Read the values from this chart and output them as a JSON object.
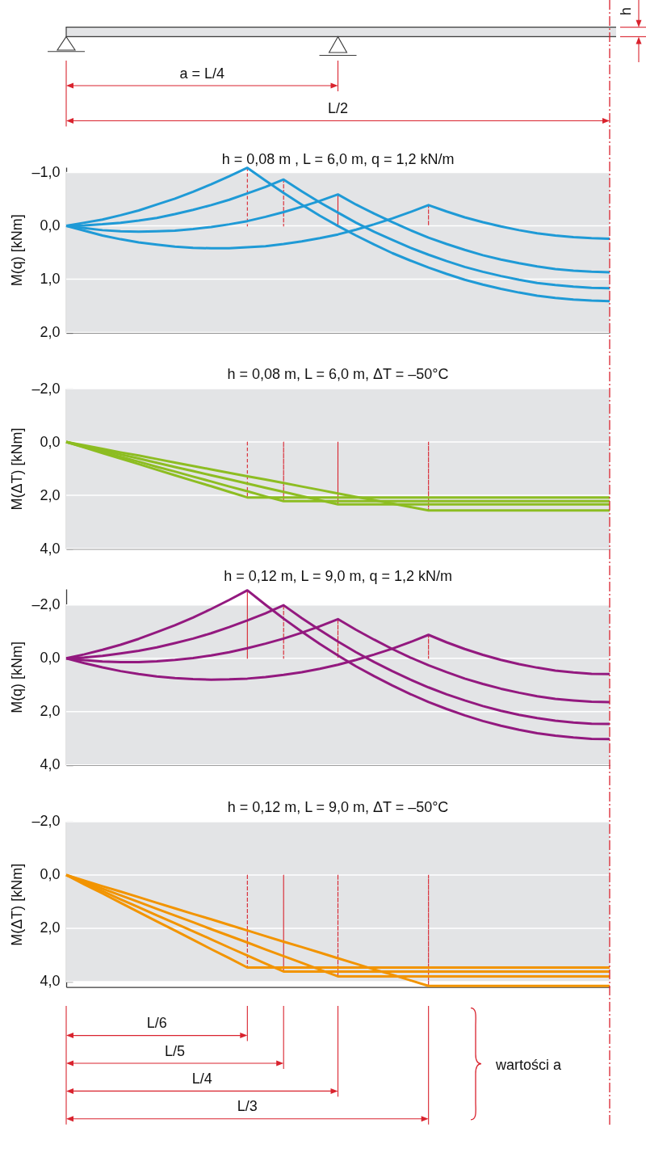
{
  "chart_data": [
    {
      "type": "line",
      "title": "h = 0,08 m , L = 6,0 m, q = 1,2 kN/m",
      "ylabel": "M(q) [kNm]",
      "categories": [
        null,
        null,
        null,
        null,
        null,
        null,
        null,
        null,
        null,
        null,
        null,
        null,
        null,
        null,
        null,
        null,
        null,
        null,
        null,
        null,
        null,
        null,
        null,
        null,
        null,
        null,
        null,
        null,
        null,
        null,
        null
      ],
      "ylim": [
        2,
        -1.1
      ],
      "yticks": [
        {
          "value": -1,
          "label": "–1,0"
        },
        {
          "value": 0,
          "label": "0,0"
        },
        {
          "value": 1,
          "label": "1,0"
        },
        {
          "value": 2,
          "label": "2,0"
        }
      ],
      "tick_labels": "y",
      "grid": "y",
      "bands": [
        {
          "axis": "y",
          "from": -1,
          "to": 2,
          "color": "#e3e4e6"
        }
      ],
      "annotations": [
        "a = L/4",
        "L/2",
        "h"
      ],
      "series": [
        {
          "type": "bar",
          "color": "#d9232e",
          "line_style": "dashed",
          "values": [
            null,
            null,
            null,
            null,
            null,
            null,
            null,
            null,
            null,
            null,
            -1.09,
            null,
            -0.87,
            null,
            null,
            -0.59,
            null,
            null,
            null,
            null,
            -0.39,
            null,
            null,
            null,
            null,
            null,
            null,
            null,
            null,
            null,
            null
          ]
        },
        {
          "color": "#1f9ad6",
          "values": [
            0,
            -0.06,
            -0.12,
            -0.2,
            -0.29,
            -0.4,
            -0.51,
            -0.64,
            -0.78,
            -0.93,
            -1.09,
            -0.85,
            -0.62,
            -0.4,
            -0.19,
            0,
            0.18,
            0.35,
            0.51,
            0.65,
            0.78,
            0.9,
            1.01,
            1.1,
            1.18,
            1.25,
            1.31,
            1.35,
            1.38,
            1.4,
            1.41
          ]
        },
        {
          "color": "#1f9ad6",
          "values": [
            0,
            -0.01,
            -0.03,
            -0.06,
            -0.1,
            -0.15,
            -0.22,
            -0.3,
            -0.39,
            -0.49,
            -0.61,
            -0.73,
            -0.87,
            -0.65,
            -0.44,
            -0.25,
            -0.06,
            0.11,
            0.26,
            0.41,
            0.54,
            0.66,
            0.77,
            0.86,
            0.94,
            1.01,
            1.07,
            1.11,
            1.14,
            1.16,
            1.17
          ]
        },
        {
          "color": "#1f9ad6",
          "values": [
            0,
            0.04,
            0.08,
            0.1,
            0.11,
            0.1,
            0.09,
            0.06,
            0.02,
            -0.03,
            -0.09,
            -0.17,
            -0.26,
            -0.36,
            -0.47,
            -0.59,
            -0.4,
            -0.23,
            -0.07,
            0.08,
            0.22,
            0.34,
            0.45,
            0.55,
            0.63,
            0.7,
            0.76,
            0.81,
            0.84,
            0.86,
            0.87
          ]
        },
        {
          "color": "#1f9ad6",
          "values": [
            0,
            0.09,
            0.18,
            0.25,
            0.31,
            0.35,
            0.39,
            0.41,
            0.42,
            0.42,
            0.4,
            0.38,
            0.34,
            0.29,
            0.23,
            0.16,
            0.07,
            -0.03,
            -0.14,
            -0.26,
            -0.39,
            -0.27,
            -0.16,
            -0.07,
            0.01,
            0.08,
            0.14,
            0.18,
            0.21,
            0.23,
            0.24
          ]
        }
      ]
    },
    {
      "type": "line",
      "title": "h = 0,08 m, L = 6,0 m, ΔT = –50°C",
      "ylabel": "M(ΔT) [kNm]",
      "categories": [
        null,
        null,
        null,
        null,
        null,
        null,
        null,
        null,
        null,
        null,
        null,
        null,
        null,
        null,
        null,
        null,
        null,
        null,
        null,
        null,
        null,
        null,
        null,
        null,
        null,
        null,
        null,
        null,
        null,
        null,
        null
      ],
      "ylim": [
        4,
        -2
      ],
      "yticks": [
        {
          "value": -2,
          "label": "–2,0"
        },
        {
          "value": 0,
          "label": "0,0"
        },
        {
          "value": 2,
          "label": "2,0"
        },
        {
          "value": 4,
          "label": "4,0"
        }
      ],
      "tick_labels": "y",
      "grid": "y",
      "bands": [
        {
          "axis": "y",
          "from": -2,
          "to": 4,
          "color": "#e3e4e6"
        }
      ],
      "series": [
        {
          "type": "bar",
          "color": "#d9232e",
          "line_style": "dashed",
          "values": [
            null,
            null,
            null,
            null,
            null,
            null,
            null,
            null,
            null,
            null,
            2.08,
            null,
            2.22,
            null,
            null,
            2.34,
            null,
            null,
            null,
            null,
            2.57,
            null,
            null,
            null,
            null,
            null,
            null,
            null,
            null,
            null,
            null
          ]
        },
        {
          "color": "#8dbd22",
          "values": [
            0,
            0.21,
            0.42,
            0.62,
            0.83,
            1.04,
            1.25,
            1.46,
            1.66,
            1.87,
            2.08,
            2.08,
            2.08,
            2.08,
            2.08,
            2.08,
            2.08,
            2.08,
            2.08,
            2.08,
            2.08,
            2.08,
            2.08,
            2.08,
            2.08,
            2.08,
            2.08,
            2.08,
            2.08,
            2.08,
            2.08
          ]
        },
        {
          "color": "#8dbd22",
          "values": [
            0,
            0.19,
            0.37,
            0.56,
            0.74,
            0.93,
            1.11,
            1.3,
            1.48,
            1.67,
            1.85,
            2.04,
            2.22,
            2.22,
            2.22,
            2.22,
            2.22,
            2.22,
            2.22,
            2.22,
            2.22,
            2.22,
            2.22,
            2.22,
            2.22,
            2.22,
            2.22,
            2.22,
            2.22,
            2.22,
            2.22
          ]
        },
        {
          "color": "#8dbd22",
          "values": [
            0,
            0.16,
            0.31,
            0.47,
            0.62,
            0.78,
            0.94,
            1.09,
            1.25,
            1.4,
            1.56,
            1.72,
            1.87,
            2.03,
            2.18,
            2.34,
            2.34,
            2.34,
            2.34,
            2.34,
            2.34,
            2.34,
            2.34,
            2.34,
            2.34,
            2.34,
            2.34,
            2.34,
            2.34,
            2.34,
            2.34
          ]
        },
        {
          "color": "#8dbd22",
          "values": [
            0,
            0.13,
            0.26,
            0.39,
            0.51,
            0.64,
            0.77,
            0.9,
            1.03,
            1.16,
            1.29,
            1.41,
            1.54,
            1.67,
            1.8,
            1.93,
            2.06,
            2.18,
            2.31,
            2.44,
            2.57,
            2.57,
            2.57,
            2.57,
            2.57,
            2.57,
            2.57,
            2.57,
            2.57,
            2.57,
            2.57
          ]
        }
      ]
    },
    {
      "type": "line",
      "title": "h = 0,12 m, L = 9,0 m, q = 1,2 kN/m",
      "ylabel": "M(q) [kNm]",
      "categories": [
        null,
        null,
        null,
        null,
        null,
        null,
        null,
        null,
        null,
        null,
        null,
        null,
        null,
        null,
        null,
        null,
        null,
        null,
        null,
        null,
        null,
        null,
        null,
        null,
        null,
        null,
        null,
        null,
        null,
        null,
        null
      ],
      "ylim": [
        4,
        -2.6
      ],
      "yticks": [
        {
          "value": -2,
          "label": "–2,0"
        },
        {
          "value": 0,
          "label": "0,0"
        },
        {
          "value": 2,
          "label": "2,0"
        },
        {
          "value": 4,
          "label": "4,0"
        }
      ],
      "tick_labels": "y",
      "grid": "y",
      "bands": [
        {
          "axis": "y",
          "from": -2,
          "to": 4,
          "color": "#e3e4e6"
        }
      ],
      "series": [
        {
          "type": "bar",
          "color": "#d9232e",
          "line_style": "dashed",
          "values": [
            null,
            null,
            null,
            null,
            null,
            null,
            null,
            null,
            null,
            null,
            -2.55,
            null,
            -1.99,
            null,
            null,
            -1.47,
            null,
            null,
            null,
            null,
            -0.88,
            null,
            null,
            null,
            null,
            null,
            null,
            null,
            null,
            null,
            null
          ]
        },
        {
          "color": "#93197f",
          "values": [
            0,
            -0.15,
            -0.32,
            -0.51,
            -0.73,
            -0.98,
            -1.24,
            -1.53,
            -1.85,
            -2.19,
            -2.55,
            -2.01,
            -1.49,
            -1,
            -0.54,
            -0.11,
            0.3,
            0.67,
            1.02,
            1.34,
            1.64,
            1.9,
            2.14,
            2.35,
            2.53,
            2.68,
            2.81,
            2.9,
            2.97,
            3.02,
            3.03
          ]
        },
        {
          "color": "#93197f",
          "values": [
            0,
            -0.03,
            -0.09,
            -0.18,
            -0.28,
            -0.41,
            -0.57,
            -0.74,
            -0.94,
            -1.17,
            -1.42,
            -1.69,
            -1.99,
            -1.51,
            -1.06,
            -0.63,
            -0.23,
            0.14,
            0.48,
            0.8,
            1.09,
            1.35,
            1.58,
            1.79,
            1.97,
            2.12,
            2.24,
            2.34,
            2.41,
            2.45,
            2.46
          ]
        },
        {
          "color": "#93197f",
          "values": [
            0,
            0.07,
            0.12,
            0.14,
            0.14,
            0.11,
            0.06,
            -0.01,
            -0.11,
            -0.23,
            -0.38,
            -0.55,
            -0.74,
            -0.96,
            -1.2,
            -1.47,
            -1.07,
            -0.7,
            -0.35,
            -0.03,
            0.26,
            0.52,
            0.76,
            0.96,
            1.14,
            1.29,
            1.42,
            1.52,
            1.58,
            1.63,
            1.64
          ]
        },
        {
          "color": "#93197f",
          "values": [
            0,
            0.18,
            0.34,
            0.48,
            0.59,
            0.68,
            0.74,
            0.78,
            0.8,
            0.79,
            0.76,
            0.7,
            0.62,
            0.52,
            0.39,
            0.24,
            0.06,
            -0.14,
            -0.36,
            -0.61,
            -0.88,
            -0.6,
            -0.35,
            -0.13,
            0.06,
            0.22,
            0.35,
            0.46,
            0.53,
            0.58,
            0.59
          ]
        }
      ]
    },
    {
      "type": "line",
      "title": "h = 0,12 m, L = 9,0 m, ΔT = –50°C",
      "ylabel": "M(ΔT) [kNm]",
      "categories": [
        null,
        null,
        null,
        null,
        null,
        null,
        null,
        null,
        null,
        null,
        null,
        null,
        null,
        null,
        null,
        null,
        null,
        null,
        null,
        null,
        null,
        null,
        null,
        null,
        null,
        null,
        null,
        null,
        null,
        null,
        null
      ],
      "ylim": [
        4.2,
        -2
      ],
      "yticks": [
        {
          "value": -2,
          "label": "–2,0"
        },
        {
          "value": 0,
          "label": "0,0"
        },
        {
          "value": 2,
          "label": "2,0"
        },
        {
          "value": 4,
          "label": "4,0"
        }
      ],
      "tick_labels": "y",
      "grid": "y",
      "bands": [
        {
          "axis": "y",
          "from": -2,
          "to": 4,
          "color": "#e3e4e6"
        }
      ],
      "annotations": [
        "L/6",
        "L/5",
        "L/4",
        "L/3",
        "wartości a"
      ],
      "series": [
        {
          "type": "bar",
          "color": "#d9232e",
          "line_style": "dashed",
          "values": [
            null,
            null,
            null,
            null,
            null,
            null,
            null,
            null,
            null,
            null,
            3.47,
            null,
            3.62,
            null,
            null,
            3.8,
            null,
            null,
            null,
            null,
            4.16,
            null,
            null,
            null,
            null,
            null,
            null,
            null,
            null,
            null,
            null
          ]
        },
        {
          "color": "#f29400",
          "values": [
            0,
            0.35,
            0.69,
            1.04,
            1.39,
            1.74,
            2.08,
            2.43,
            2.78,
            3.12,
            3.47,
            3.47,
            3.47,
            3.47,
            3.47,
            3.47,
            3.47,
            3.47,
            3.47,
            3.47,
            3.47,
            3.47,
            3.47,
            3.47,
            3.47,
            3.47,
            3.47,
            3.47,
            3.47,
            3.47,
            3.47
          ]
        },
        {
          "color": "#f29400",
          "values": [
            0,
            0.3,
            0.6,
            0.91,
            1.21,
            1.51,
            1.81,
            2.11,
            2.41,
            2.72,
            3.02,
            3.32,
            3.62,
            3.62,
            3.62,
            3.62,
            3.62,
            3.62,
            3.62,
            3.62,
            3.62,
            3.62,
            3.62,
            3.62,
            3.62,
            3.62,
            3.62,
            3.62,
            3.62,
            3.62,
            3.62
          ]
        },
        {
          "color": "#f29400",
          "values": [
            0,
            0.25,
            0.51,
            0.76,
            1.01,
            1.27,
            1.52,
            1.77,
            2.03,
            2.28,
            2.53,
            2.79,
            3.04,
            3.29,
            3.55,
            3.8,
            3.8,
            3.8,
            3.8,
            3.8,
            3.8,
            3.8,
            3.8,
            3.8,
            3.8,
            3.8,
            3.8,
            3.8,
            3.8,
            3.8,
            3.8
          ]
        },
        {
          "color": "#f29400",
          "values": [
            0,
            0.21,
            0.42,
            0.62,
            0.83,
            1.04,
            1.25,
            1.46,
            1.66,
            1.87,
            2.08,
            2.29,
            2.5,
            2.7,
            2.91,
            3.12,
            3.33,
            3.54,
            3.74,
            3.95,
            4.16,
            4.16,
            4.16,
            4.16,
            4.16,
            4.16,
            4.16,
            4.16,
            4.16,
            4.16,
            4.16
          ]
        }
      ]
    }
  ]
}
